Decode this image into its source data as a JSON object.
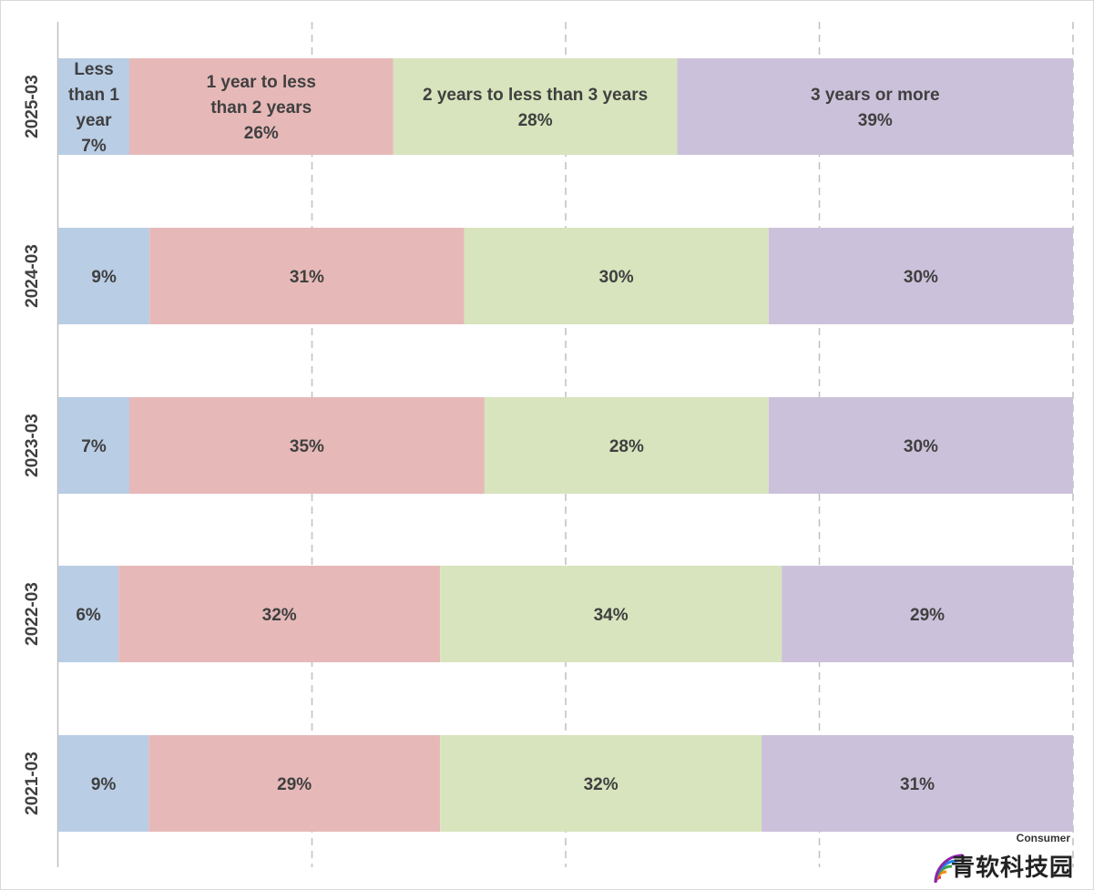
{
  "chart_data": {
    "type": "bar",
    "orientation": "horizontal",
    "stacked": true,
    "normalized": true,
    "categories": [
      "2025-03",
      "2024-03",
      "2023-03",
      "2022-03",
      "2021-03"
    ],
    "series": [
      {
        "name": "Less than 1 year",
        "color": "#b9cde5",
        "values": [
          7,
          9,
          7,
          6,
          9
        ]
      },
      {
        "name": "1 year to less than 2 years",
        "color": "#e6b9b8",
        "values": [
          26,
          31,
          35,
          32,
          29
        ]
      },
      {
        "name": "2 years to less than 3 years",
        "color": "#d7e4bd",
        "values": [
          28,
          30,
          28,
          34,
          32
        ]
      },
      {
        "name": "3 years or more",
        "color": "#ccc1da",
        "values": [
          39,
          30,
          30,
          29,
          31
        ]
      }
    ],
    "labels": [
      [
        "Less than 1 year 7%",
        "1 year to less than 2 years 26%",
        "2 years to less than 3 years 28%",
        "3 years or more 39%"
      ],
      [
        "9%",
        "31%",
        "30%",
        "30%"
      ],
      [
        "7%",
        "35%",
        "28%",
        "30%"
      ],
      [
        "6%",
        "32%",
        "34%",
        "29%"
      ],
      [
        "9%",
        "29%",
        "32%",
        "31%"
      ]
    ],
    "label_lines": [
      [
        [
          "Less",
          "than 1",
          "year",
          "7%"
        ],
        [
          "1 year to less",
          "than 2 years",
          "26%"
        ],
        [
          "2 years to less than 3 years",
          "28%"
        ],
        [
          "3 years or more",
          "39%"
        ]
      ],
      [
        [
          "9%"
        ],
        [
          "31%"
        ],
        [
          "30%"
        ],
        [
          "30%"
        ]
      ],
      [
        [
          "7%"
        ],
        [
          "35%"
        ],
        [
          "28%"
        ],
        [
          "30%"
        ]
      ],
      [
        [
          "6%"
        ],
        [
          "32%"
        ],
        [
          "34%"
        ],
        [
          "29%"
        ]
      ],
      [
        [
          "9%"
        ],
        [
          "29%"
        ],
        [
          "32%"
        ],
        [
          "31%"
        ]
      ]
    ],
    "xlim": [
      0,
      100
    ],
    "grid": "vertical-dashed",
    "grid_values": [
      25,
      50,
      75,
      100
    ],
    "legend": "none",
    "title": "",
    "xlabel": "",
    "ylabel": ""
  },
  "watermark": {
    "brand_top": "Consumer",
    "brand_text": "青软科技园",
    "logo_icon": "rainbow-signal-icon"
  }
}
